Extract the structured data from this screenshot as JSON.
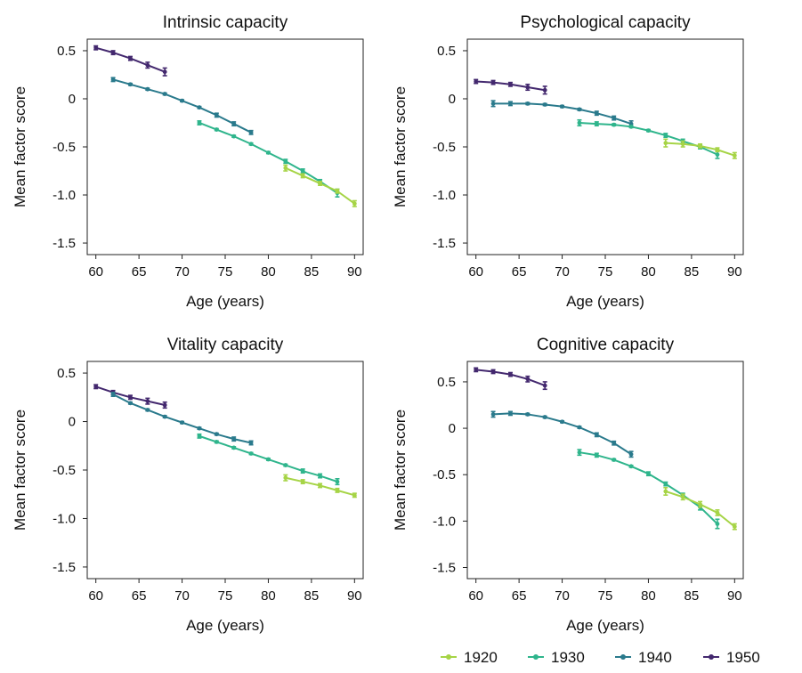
{
  "colors": {
    "1920": "#a6d446",
    "1930": "#2fb58c",
    "1940": "#2a7a8c",
    "1950": "#43286e"
  },
  "legend": {
    "items": [
      {
        "label": "1920",
        "color": "#a6d446"
      },
      {
        "label": "1930",
        "color": "#2fb58c"
      },
      {
        "label": "1940",
        "color": "#2a7a8c"
      },
      {
        "label": "1950",
        "color": "#43286e"
      }
    ]
  },
  "chart_data": [
    {
      "type": "line",
      "title": "Intrinsic capacity",
      "xlabel": "Age (years)",
      "ylabel": "Mean factor score",
      "xlim": [
        59,
        91
      ],
      "ylim": [
        -1.62,
        0.62
      ],
      "xticks": [
        60,
        65,
        70,
        75,
        80,
        85,
        90
      ],
      "xtick_labels": [
        "60",
        "65",
        "70",
        "75",
        "80",
        "85",
        "90"
      ],
      "yticks": [
        0.5,
        0,
        -0.5,
        -1.0,
        -1.5
      ],
      "ytick_labels": [
        "0.5",
        "0",
        "-0.5",
        "-1.0",
        "-1.5"
      ],
      "series": [
        {
          "name": "1950",
          "x": [
            60,
            62,
            64,
            66,
            68
          ],
          "y": [
            0.53,
            0.48,
            0.42,
            0.35,
            0.28
          ],
          "err": [
            0.02,
            0.02,
            0.02,
            0.03,
            0.04
          ]
        },
        {
          "name": "1940",
          "x": [
            62,
            64,
            66,
            68,
            70,
            72,
            74,
            76,
            78
          ],
          "y": [
            0.2,
            0.15,
            0.1,
            0.05,
            -0.02,
            -0.09,
            -0.17,
            -0.26,
            -0.35
          ],
          "err": [
            0.02,
            0.01,
            0.01,
            0.01,
            0.01,
            0.01,
            0.02,
            0.02,
            0.02
          ]
        },
        {
          "name": "1930",
          "x": [
            72,
            74,
            76,
            78,
            80,
            82,
            84,
            86,
            88
          ],
          "y": [
            -0.25,
            -0.32,
            -0.39,
            -0.47,
            -0.56,
            -0.65,
            -0.75,
            -0.86,
            -0.98
          ],
          "err": [
            0.02,
            0.01,
            0.01,
            0.01,
            0.01,
            0.02,
            0.02,
            0.02,
            0.04
          ]
        },
        {
          "name": "1920",
          "x": [
            82,
            84,
            86,
            88,
            90
          ],
          "y": [
            -0.72,
            -0.8,
            -0.88,
            -0.96,
            -1.09
          ],
          "err": [
            0.03,
            0.02,
            0.02,
            0.02,
            0.03
          ]
        }
      ]
    },
    {
      "type": "line",
      "title": "Psychological capacity",
      "xlabel": "Age (years)",
      "ylabel": "Mean factor score",
      "xlim": [
        59,
        91
      ],
      "ylim": [
        -1.62,
        0.62
      ],
      "xticks": [
        60,
        65,
        70,
        75,
        80,
        85,
        90
      ],
      "xtick_labels": [
        "60",
        "65",
        "70",
        "75",
        "80",
        "85",
        "90"
      ],
      "yticks": [
        0.5,
        0,
        -0.5,
        -1.0,
        -1.5
      ],
      "ytick_labels": [
        "0.5",
        "0",
        "-0.5",
        "-1.0",
        "-1.5"
      ],
      "series": [
        {
          "name": "1950",
          "x": [
            60,
            62,
            64,
            66,
            68
          ],
          "y": [
            0.18,
            0.17,
            0.15,
            0.12,
            0.09
          ],
          "err": [
            0.02,
            0.02,
            0.02,
            0.03,
            0.04
          ]
        },
        {
          "name": "1940",
          "x": [
            62,
            64,
            66,
            68,
            70,
            72,
            74,
            76,
            78
          ],
          "y": [
            -0.05,
            -0.05,
            -0.05,
            -0.06,
            -0.08,
            -0.11,
            -0.15,
            -0.2,
            -0.26
          ],
          "err": [
            0.03,
            0.02,
            0.01,
            0.01,
            0.01,
            0.01,
            0.02,
            0.02,
            0.03
          ]
        },
        {
          "name": "1930",
          "x": [
            72,
            74,
            76,
            78,
            80,
            82,
            84,
            86,
            88
          ],
          "y": [
            -0.25,
            -0.26,
            -0.27,
            -0.29,
            -0.33,
            -0.38,
            -0.44,
            -0.5,
            -0.58
          ],
          "err": [
            0.03,
            0.02,
            0.01,
            0.01,
            0.01,
            0.02,
            0.02,
            0.02,
            0.04
          ]
        },
        {
          "name": "1920",
          "x": [
            82,
            84,
            86,
            88,
            90
          ],
          "y": [
            -0.46,
            -0.47,
            -0.49,
            -0.53,
            -0.59
          ],
          "err": [
            0.04,
            0.03,
            0.02,
            0.02,
            0.03
          ]
        }
      ]
    },
    {
      "type": "line",
      "title": "Vitality capacity",
      "xlabel": "Age (years)",
      "ylabel": "Mean factor score",
      "xlim": [
        59,
        91
      ],
      "ylim": [
        -1.62,
        0.62
      ],
      "xticks": [
        60,
        65,
        70,
        75,
        80,
        85,
        90
      ],
      "xtick_labels": [
        "60",
        "65",
        "70",
        "75",
        "80",
        "85",
        "90"
      ],
      "yticks": [
        0.5,
        0,
        -0.5,
        -1.0,
        -1.5
      ],
      "ytick_labels": [
        "0.5",
        "0",
        "-0.5",
        "-1.0",
        "-1.5"
      ],
      "series": [
        {
          "name": "1950",
          "x": [
            60,
            62,
            64,
            66,
            68
          ],
          "y": [
            0.36,
            0.3,
            0.25,
            0.21,
            0.17
          ],
          "err": [
            0.02,
            0.02,
            0.02,
            0.03,
            0.03
          ]
        },
        {
          "name": "1940",
          "x": [
            62,
            64,
            66,
            68,
            70,
            72,
            74,
            76,
            78
          ],
          "y": [
            0.28,
            0.19,
            0.12,
            0.05,
            -0.01,
            -0.07,
            -0.13,
            -0.18,
            -0.22
          ],
          "err": [
            0.02,
            0.01,
            0.01,
            0.01,
            0.01,
            0.01,
            0.01,
            0.02,
            0.02
          ]
        },
        {
          "name": "1930",
          "x": [
            72,
            74,
            76,
            78,
            80,
            82,
            84,
            86,
            88
          ],
          "y": [
            -0.15,
            -0.21,
            -0.27,
            -0.33,
            -0.39,
            -0.45,
            -0.51,
            -0.56,
            -0.62
          ],
          "err": [
            0.02,
            0.01,
            0.01,
            0.01,
            0.01,
            0.01,
            0.02,
            0.02,
            0.03
          ]
        },
        {
          "name": "1920",
          "x": [
            82,
            84,
            86,
            88,
            90
          ],
          "y": [
            -0.58,
            -0.62,
            -0.66,
            -0.71,
            -0.76
          ],
          "err": [
            0.03,
            0.02,
            0.02,
            0.02,
            0.02
          ]
        }
      ]
    },
    {
      "type": "line",
      "title": "Cognitive capacity",
      "xlabel": "Age (years)",
      "ylabel": "Mean factor score",
      "xlim": [
        59,
        91
      ],
      "ylim": [
        -1.62,
        0.72
      ],
      "xticks": [
        60,
        65,
        70,
        75,
        80,
        85,
        90
      ],
      "xtick_labels": [
        "60",
        "65",
        "70",
        "75",
        "80",
        "85",
        "90"
      ],
      "yticks": [
        0.5,
        0,
        -0.5,
        -1.0,
        -1.5
      ],
      "ytick_labels": [
        "0.5",
        "0",
        "-0.5",
        "-1.0",
        "-1.5"
      ],
      "series": [
        {
          "name": "1950",
          "x": [
            60,
            62,
            64,
            66,
            68
          ],
          "y": [
            0.63,
            0.61,
            0.58,
            0.53,
            0.46
          ],
          "err": [
            0.02,
            0.02,
            0.02,
            0.03,
            0.04
          ]
        },
        {
          "name": "1940",
          "x": [
            62,
            64,
            66,
            68,
            70,
            72,
            74,
            76,
            78
          ],
          "y": [
            0.15,
            0.16,
            0.15,
            0.12,
            0.07,
            0.01,
            -0.07,
            -0.16,
            -0.28
          ],
          "err": [
            0.03,
            0.02,
            0.01,
            0.01,
            0.01,
            0.01,
            0.02,
            0.02,
            0.03
          ]
        },
        {
          "name": "1930",
          "x": [
            72,
            74,
            76,
            78,
            80,
            82,
            84,
            86,
            88
          ],
          "y": [
            -0.26,
            -0.29,
            -0.34,
            -0.41,
            -0.49,
            -0.6,
            -0.72,
            -0.85,
            -1.03
          ],
          "err": [
            0.03,
            0.02,
            0.01,
            0.01,
            0.02,
            0.02,
            0.02,
            0.03,
            0.05
          ]
        },
        {
          "name": "1920",
          "x": [
            82,
            84,
            86,
            88,
            90
          ],
          "y": [
            -0.68,
            -0.74,
            -0.82,
            -0.91,
            -1.06
          ],
          "err": [
            0.04,
            0.03,
            0.03,
            0.03,
            0.03
          ]
        }
      ]
    }
  ]
}
